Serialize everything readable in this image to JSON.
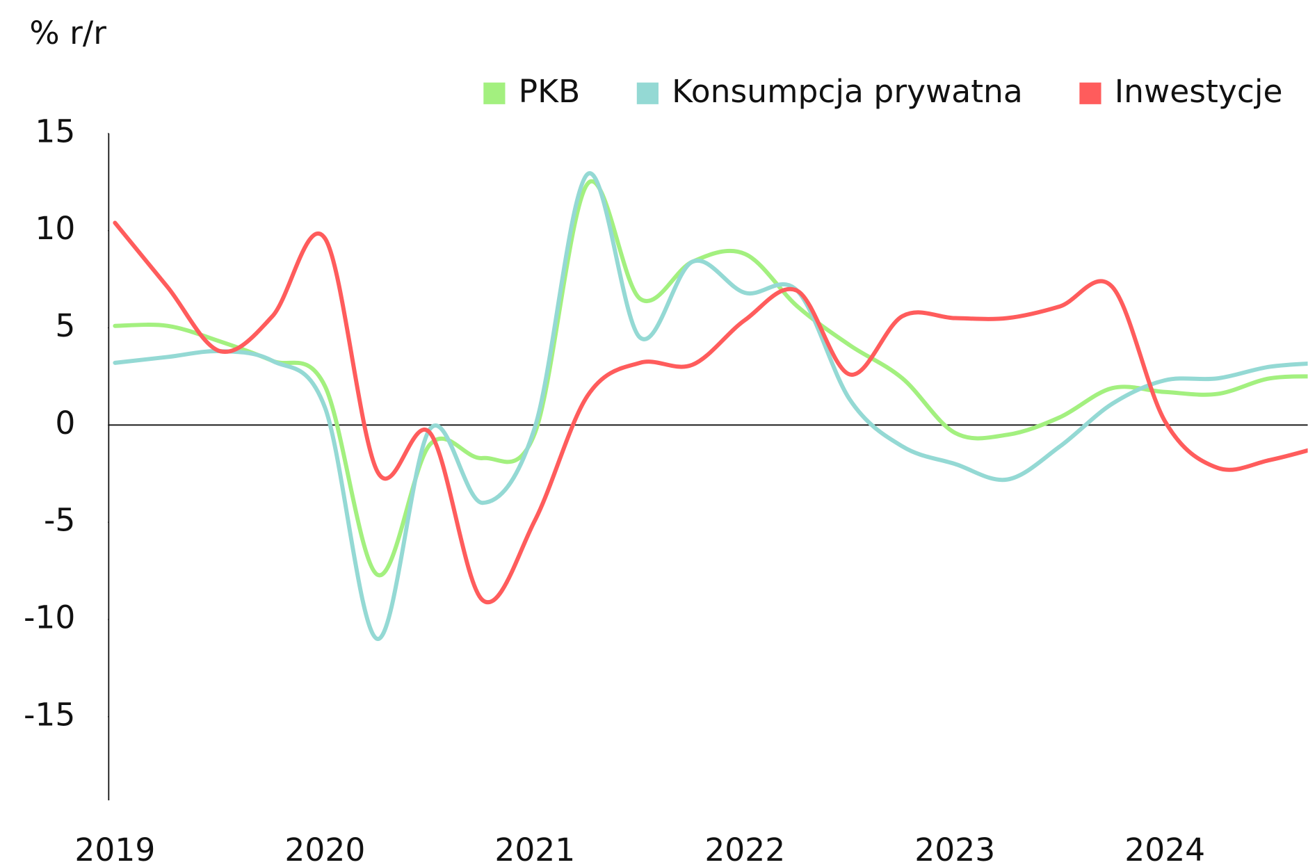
{
  "chart_data": {
    "type": "line",
    "y_label": "% r/r",
    "x": [
      2019.0,
      2019.25,
      2019.5,
      2019.75,
      2020.0,
      2020.25,
      2020.5,
      2020.75,
      2021.0,
      2021.25,
      2021.5,
      2021.75,
      2022.0,
      2022.25,
      2022.5,
      2022.75,
      2023.0,
      2023.25,
      2023.5,
      2023.75,
      2024.0,
      2024.25,
      2024.5,
      2024.75
    ],
    "series": [
      {
        "name": "PKB",
        "color": "#a3f07f",
        "values": [
          5.1,
          5.1,
          4.3,
          3.3,
          2.0,
          -7.7,
          -1.0,
          -1.7,
          -0.4,
          12.4,
          6.5,
          8.4,
          8.8,
          6.1,
          4.1,
          2.4,
          -0.4,
          -0.5,
          0.4,
          1.9,
          1.7,
          1.6,
          2.4,
          2.5
        ]
      },
      {
        "name": "Konsumpcja prywatna",
        "color": "#94d9d4",
        "values": [
          3.2,
          3.5,
          3.8,
          3.3,
          0.9,
          -11.0,
          -0.2,
          -4.0,
          -0.1,
          12.9,
          4.5,
          8.4,
          6.8,
          6.9,
          1.3,
          -1.1,
          -2.0,
          -2.8,
          -1.1,
          1.1,
          2.3,
          2.4,
          3.0,
          3.2
        ]
      },
      {
        "name": "Inwestycje",
        "color": "#ff5c5c",
        "values": [
          10.4,
          7.1,
          3.8,
          5.6,
          9.6,
          -2.4,
          -0.4,
          -9.0,
          -4.9,
          1.5,
          3.2,
          3.1,
          5.4,
          6.9,
          2.6,
          5.6,
          5.5,
          5.5,
          6.1,
          7.1,
          0.2,
          -2.2,
          -1.8,
          -1.1
        ]
      }
    ],
    "xlim": [
      2018.97,
      2024.68
    ],
    "xticks": [
      2019,
      2020,
      2021,
      2022,
      2023,
      2024
    ],
    "ylim": [
      -19.3,
      15
    ],
    "yticks": [
      15,
      10,
      5,
      0,
      -5,
      -10,
      -15
    ],
    "zero_line": true,
    "legend": "top-right"
  }
}
